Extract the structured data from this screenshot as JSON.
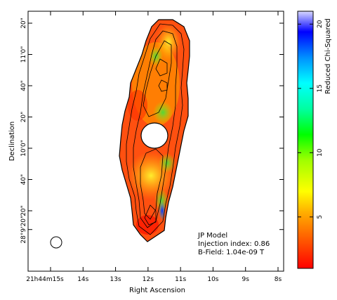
{
  "chart_data": {
    "type": "heatmap",
    "title": "",
    "xlabel": "Right Ascension",
    "ylabel": "Declination",
    "x_ticks": [
      {
        "sec": 15,
        "label": "21h44m15s"
      },
      {
        "sec": 14,
        "label": "14s"
      },
      {
        "sec": 13,
        "label": "13s"
      },
      {
        "sec": 12,
        "label": "12s"
      },
      {
        "sec": 11,
        "label": "11s"
      },
      {
        "sec": 10,
        "label": "10s"
      },
      {
        "sec": 9,
        "label": "9s"
      },
      {
        "sec": 8,
        "label": "8s"
      }
    ],
    "y_ticks": [
      {
        "arcsec": 100,
        "label": "20\""
      },
      {
        "arcsec": 90,
        "label": "11'0\""
      },
      {
        "arcsec": 80,
        "label": "40\""
      },
      {
        "arcsec": 70,
        "label": "20\""
      },
      {
        "arcsec": 60,
        "label": "10'0\""
      },
      {
        "arcsec": 50,
        "label": "40\""
      },
      {
        "arcsec": 40,
        "label": "20\""
      },
      {
        "arcsec": 34,
        "label": "28°9'20\""
      }
    ],
    "colorbar": {
      "label": "Reduced Chi-Squared",
      "min": 1,
      "max": 21,
      "ticks": [
        5,
        10,
        15,
        20
      ]
    },
    "annotations": {
      "model": "JP Model",
      "injection": "Injection index: 0.86",
      "bfield": "B-Field: 1.04e-09 T"
    },
    "colors": {
      "low": "#ff2000",
      "mid": "#ffff00",
      "high": "#0000ff"
    }
  }
}
